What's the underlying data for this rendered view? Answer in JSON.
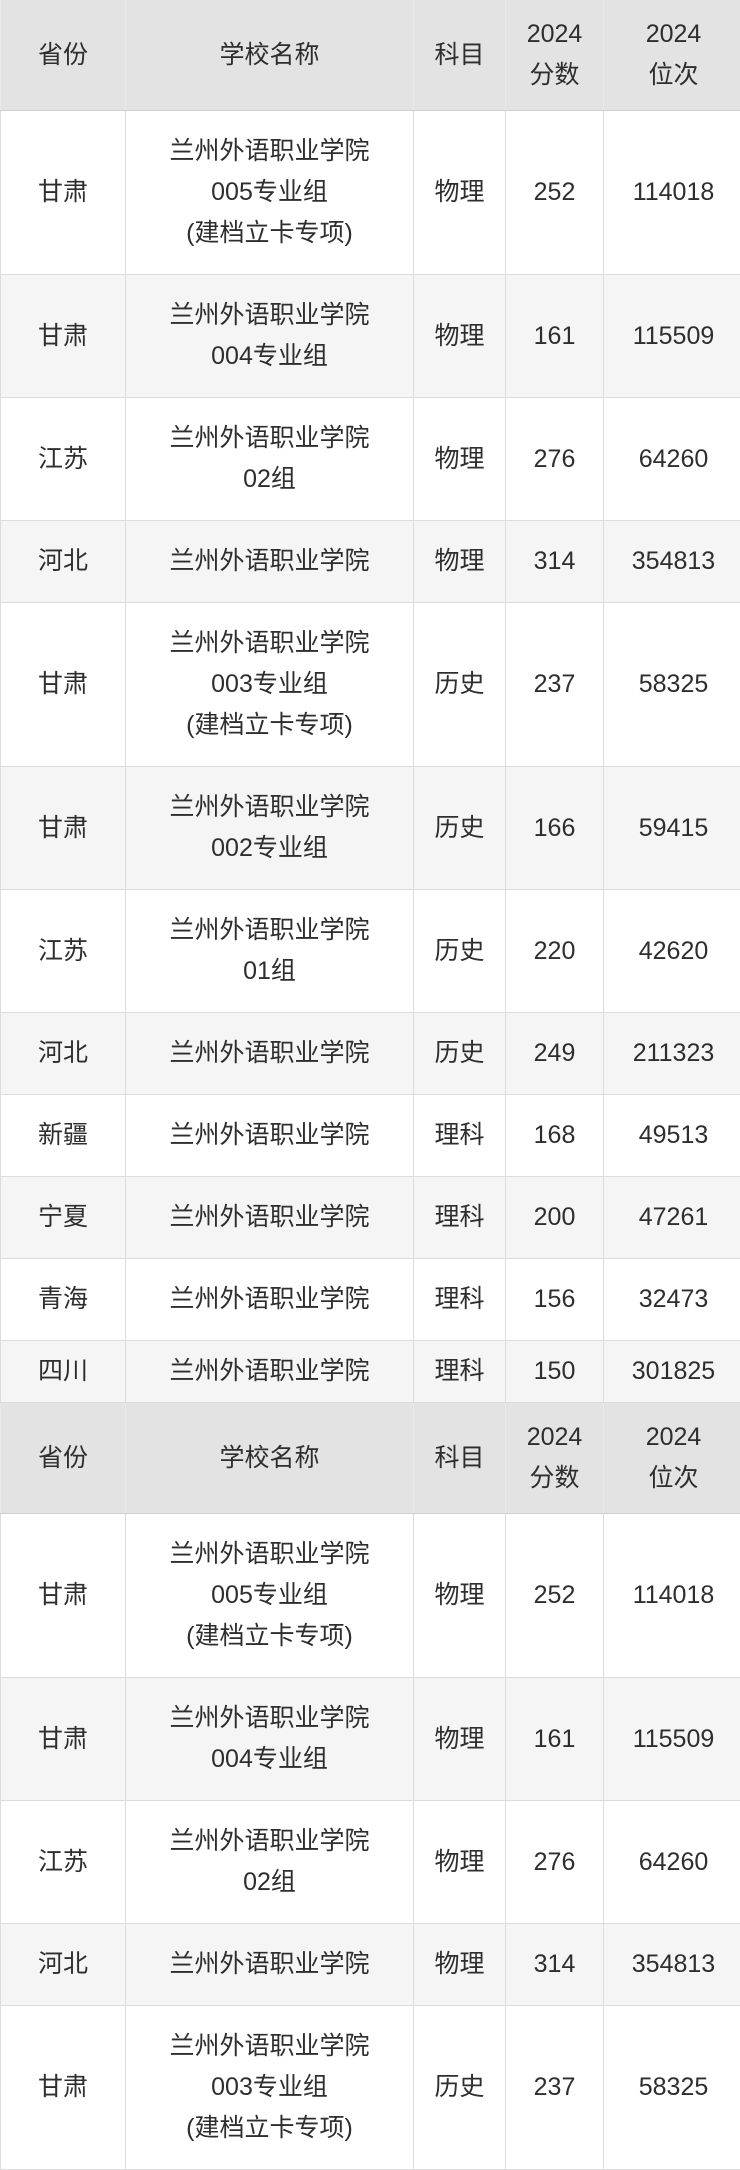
{
  "colors": {
    "header_bg": "#e3e3e3",
    "row_bg": "#ffffff",
    "row_alt_bg": "#f5f5f6",
    "border": "#dcdcdc",
    "text": "#2e2e2e"
  },
  "table": {
    "columns": [
      {
        "label": "省份"
      },
      {
        "label": "学校名称"
      },
      {
        "label": "科目"
      },
      {
        "label": "2024\n分数"
      },
      {
        "label": "2024\n位次"
      }
    ],
    "rows": [
      {
        "province": "甘肃",
        "school": "兰州外语职业学院\n005专业组\n(建档立卡专项)",
        "subject": "物理",
        "score": "252",
        "rank": "114018"
      },
      {
        "province": "甘肃",
        "school": "兰州外语职业学院\n004专业组",
        "subject": "物理",
        "score": "161",
        "rank": "115509"
      },
      {
        "province": "江苏",
        "school": "兰州外语职业学院\n02组",
        "subject": "物理",
        "score": "276",
        "rank": "64260"
      },
      {
        "province": "河北",
        "school": "兰州外语职业学院",
        "subject": "物理",
        "score": "314",
        "rank": "354813"
      },
      {
        "province": "甘肃",
        "school": "兰州外语职业学院\n003专业组\n(建档立卡专项)",
        "subject": "历史",
        "score": "237",
        "rank": "58325"
      },
      {
        "province": "甘肃",
        "school": "兰州外语职业学院\n002专业组",
        "subject": "历史",
        "score": "166",
        "rank": "59415"
      },
      {
        "province": "江苏",
        "school": "兰州外语职业学院\n01组",
        "subject": "历史",
        "score": "220",
        "rank": "42620"
      },
      {
        "province": "河北",
        "school": "兰州外语职业学院",
        "subject": "历史",
        "score": "249",
        "rank": "211323"
      },
      {
        "province": "新疆",
        "school": "兰州外语职业学院",
        "subject": "理科",
        "score": "168",
        "rank": "49513"
      },
      {
        "province": "宁夏",
        "school": "兰州外语职业学院",
        "subject": "理科",
        "score": "200",
        "rank": "47261"
      },
      {
        "province": "青海",
        "school": "兰州外语职业学院",
        "subject": "理科",
        "score": "156",
        "rank": "32473"
      },
      {
        "province": "四川",
        "school": "兰州外语职业学院",
        "subject": "理科",
        "score": "150",
        "rank": "301825"
      }
    ],
    "sections": [
      {
        "name": "section-1",
        "row_indices": [
          0,
          1,
          2,
          3,
          4,
          5,
          6,
          7,
          8,
          9,
          10,
          11
        ]
      },
      {
        "name": "section-2",
        "row_indices": [
          0,
          1,
          2,
          3,
          4
        ]
      }
    ]
  }
}
